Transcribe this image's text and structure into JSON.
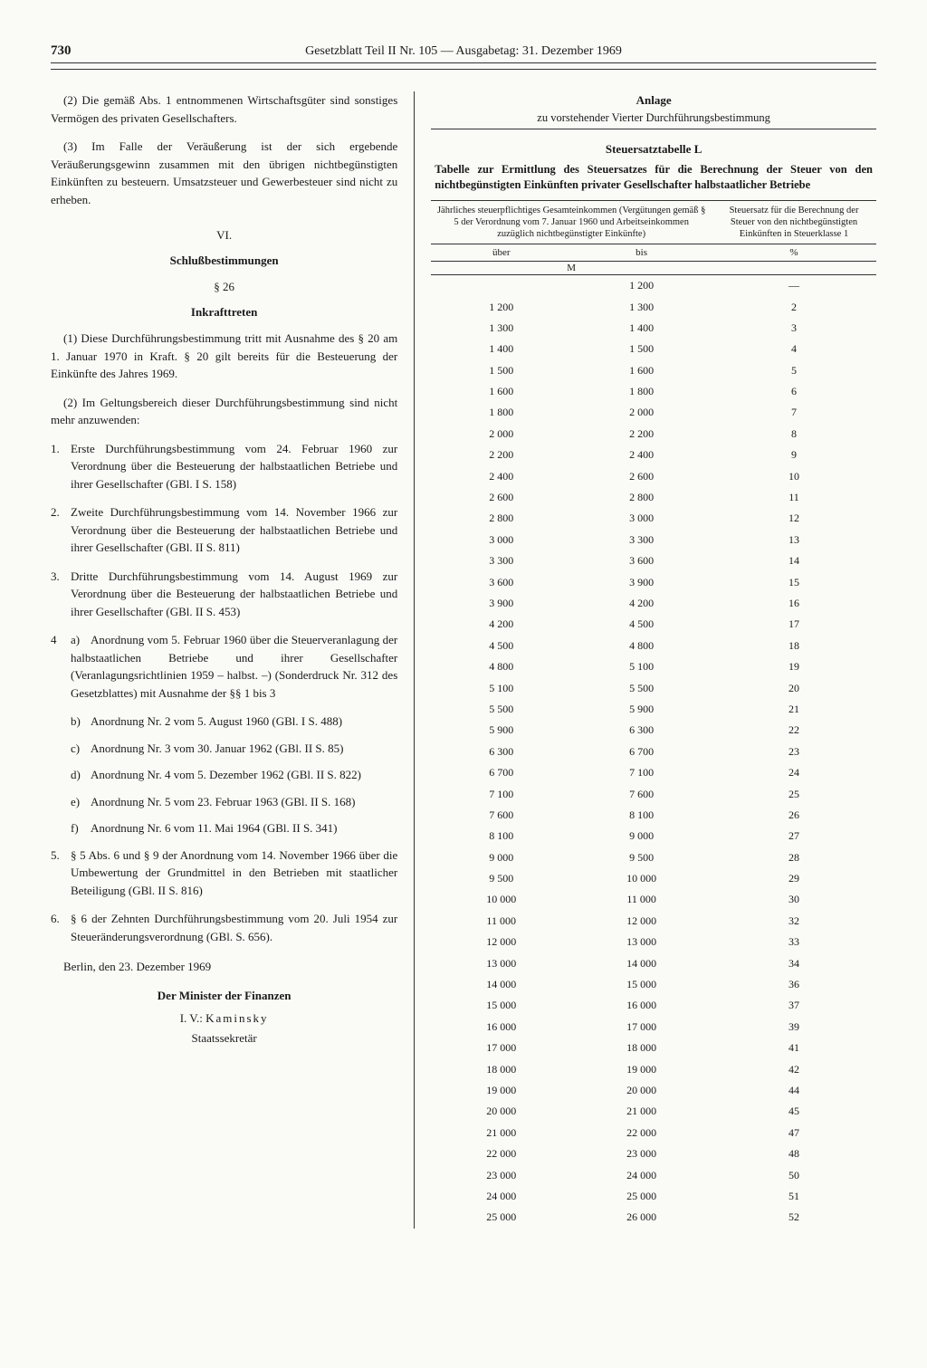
{
  "page_number": "730",
  "header": "Gesetzblatt Teil II Nr. 105 — Ausgabetag: 31. Dezember 1969",
  "left": {
    "p2": "(2) Die gemäß Abs. 1 entnommenen Wirtschaftsgüter sind sonstiges Vermögen des privaten Gesellschafters.",
    "p3": "(3) Im Falle der Veräußerung ist der sich ergebende Veräußerungsgewinn zusammen mit den übrigen nichtbegünstigten Einkünften zu besteuern. Umsatzsteuer und Gewerbesteuer sind nicht zu erheben.",
    "vi": "VI.",
    "schluss": "Schlußbestimmungen",
    "s26": "§ 26",
    "inkraft": "Inkrafttreten",
    "s26_1": "(1) Diese Durchführungsbestimmung tritt mit Ausnahme des § 20 am 1. Januar 1970 in Kraft. § 20 gilt bereits für die Besteuerung der Einkünfte des Jahres 1969.",
    "s26_2": "(2) Im Geltungsbereich dieser Durchführungsbestimmung sind nicht mehr anzuwenden:",
    "items": [
      "Erste Durchführungsbestimmung vom 24. Februar 1960 zur Verordnung über die Besteuerung der halbstaatlichen Betriebe und ihrer Gesellschafter (GBl. I S. 158)",
      "Zweite Durchführungsbestimmung vom 14. November 1966 zur Verordnung über die Besteuerung der halbstaatlichen Betriebe und ihrer Gesellschafter (GBl. II S. 811)",
      "Dritte Durchführungsbestimmung vom 14. August 1969 zur Verordnung über die Besteuerung der halbstaatlichen Betriebe und ihrer Gesellschafter (GBl. II S. 453)"
    ],
    "item4_subs": [
      "Anordnung vom 5. Februar 1960 über die Steuerveranlagung der halbstaatlichen Betriebe und ihrer Gesellschafter (Veranlagungsrichtlinien 1959 – halbst. –) (Sonderdruck Nr. 312 des Gesetzblattes) mit Ausnahme der §§ 1 bis 3",
      "Anordnung Nr. 2 vom 5. August 1960 (GBl. I S. 488)",
      "Anordnung Nr. 3 vom 30. Januar 1962 (GBl. II S. 85)",
      "Anordnung Nr. 4 vom 5. Dezember 1962 (GBl. II S. 822)",
      "Anordnung Nr. 5 vom 23. Februar 1963 (GBl. II S. 168)",
      "Anordnung Nr. 6 vom 11. Mai 1964 (GBl. II S. 341)"
    ],
    "item5": "§ 5 Abs. 6 und § 9 der Anordnung vom 14. November 1966 über die Umbewertung der Grundmittel in den Betrieben mit staatlicher Beteiligung (GBl. II S. 816)",
    "item6": "§ 6 der Zehnten Durchführungsbestimmung vom 20. Juli 1954 zur Steueränderungsverordnung (GBl. S. 656).",
    "place_date": "Berlin, den 23. Dezember 1969",
    "minister": "Der Minister der Finanzen",
    "iv": "I. V.: ",
    "sig_name": "Kaminsky",
    "sig_title": "Staatssekretär"
  },
  "right": {
    "anlage": "Anlage",
    "anlage_sub": "zu vorstehender Vierter Durchführungsbestimmung",
    "tbl_name": "Steuersatztabelle L",
    "tbl_caption": "Tabelle zur Ermittlung des Steuersatzes für die Berechnung der Steuer von den nichtbegünstigten Einkünften privater Gesellschafter halbstaatlicher Betriebe",
    "head_left": "Jährliches steuerpflichtiges Gesamteinkommen\n(Vergütungen gemäß § 5 der Verordnung vom 7. Januar 1960 und Arbeitseinkommen zuzüglich nichtbegünstigter Einkünfte)",
    "head_right": "Steuersatz für die Berechnung der Steuer von den nichtbegünstigten Einkünften in Steuerklasse 1",
    "col_uber": "über",
    "col_bis": "bis",
    "unit_m": "M",
    "unit_pct": "%",
    "rows": [
      {
        "a": "",
        "b": "1 200",
        "p": "—"
      },
      {
        "a": "1 200",
        "b": "1 300",
        "p": "2"
      },
      {
        "a": "1 300",
        "b": "1 400",
        "p": "3"
      },
      {
        "a": "1 400",
        "b": "1 500",
        "p": "4"
      },
      {
        "a": "1 500",
        "b": "1 600",
        "p": "5"
      },
      {
        "a": "1 600",
        "b": "1 800",
        "p": "6"
      },
      {
        "a": "1 800",
        "b": "2 000",
        "p": "7"
      },
      {
        "a": "2 000",
        "b": "2 200",
        "p": "8"
      },
      {
        "a": "2 200",
        "b": "2 400",
        "p": "9"
      },
      {
        "a": "2 400",
        "b": "2 600",
        "p": "10"
      },
      {
        "a": "2 600",
        "b": "2 800",
        "p": "11"
      },
      {
        "a": "2 800",
        "b": "3 000",
        "p": "12"
      },
      {
        "a": "3 000",
        "b": "3 300",
        "p": "13"
      },
      {
        "a": "3 300",
        "b": "3 600",
        "p": "14"
      },
      {
        "a": "3 600",
        "b": "3 900",
        "p": "15"
      },
      {
        "a": "3 900",
        "b": "4 200",
        "p": "16"
      },
      {
        "a": "4 200",
        "b": "4 500",
        "p": "17"
      },
      {
        "a": "4 500",
        "b": "4 800",
        "p": "18"
      },
      {
        "a": "4 800",
        "b": "5 100",
        "p": "19"
      },
      {
        "a": "5 100",
        "b": "5 500",
        "p": "20"
      },
      {
        "a": "5 500",
        "b": "5 900",
        "p": "21"
      },
      {
        "a": "5 900",
        "b": "6 300",
        "p": "22"
      },
      {
        "a": "6 300",
        "b": "6 700",
        "p": "23"
      },
      {
        "a": "6 700",
        "b": "7 100",
        "p": "24"
      },
      {
        "a": "7 100",
        "b": "7 600",
        "p": "25"
      },
      {
        "a": "7 600",
        "b": "8 100",
        "p": "26"
      },
      {
        "a": "8 100",
        "b": "9 000",
        "p": "27"
      },
      {
        "a": "9 000",
        "b": "9 500",
        "p": "28"
      },
      {
        "a": "9 500",
        "b": "10 000",
        "p": "29"
      },
      {
        "a": "10 000",
        "b": "11 000",
        "p": "30"
      },
      {
        "a": "11 000",
        "b": "12 000",
        "p": "32"
      },
      {
        "a": "12 000",
        "b": "13 000",
        "p": "33"
      },
      {
        "a": "13 000",
        "b": "14 000",
        "p": "34"
      },
      {
        "a": "14 000",
        "b": "15 000",
        "p": "36"
      },
      {
        "a": "15 000",
        "b": "16 000",
        "p": "37"
      },
      {
        "a": "16 000",
        "b": "17 000",
        "p": "39"
      },
      {
        "a": "17 000",
        "b": "18 000",
        "p": "41"
      },
      {
        "a": "18 000",
        "b": "19 000",
        "p": "42"
      },
      {
        "a": "19 000",
        "b": "20 000",
        "p": "44"
      },
      {
        "a": "20 000",
        "b": "21 000",
        "p": "45"
      },
      {
        "a": "21 000",
        "b": "22 000",
        "p": "47"
      },
      {
        "a": "22 000",
        "b": "23 000",
        "p": "48"
      },
      {
        "a": "23 000",
        "b": "24 000",
        "p": "50"
      },
      {
        "a": "24 000",
        "b": "25 000",
        "p": "51"
      },
      {
        "a": "25 000",
        "b": "26 000",
        "p": "52"
      }
    ]
  },
  "markers": {
    "n1": "1.",
    "n2": "2.",
    "n3": "3.",
    "n4": "4",
    "n5": "5.",
    "n6": "6.",
    "a": "a)",
    "b": "b)",
    "c": "c)",
    "d": "d)",
    "e": "e)",
    "f": "f)"
  }
}
